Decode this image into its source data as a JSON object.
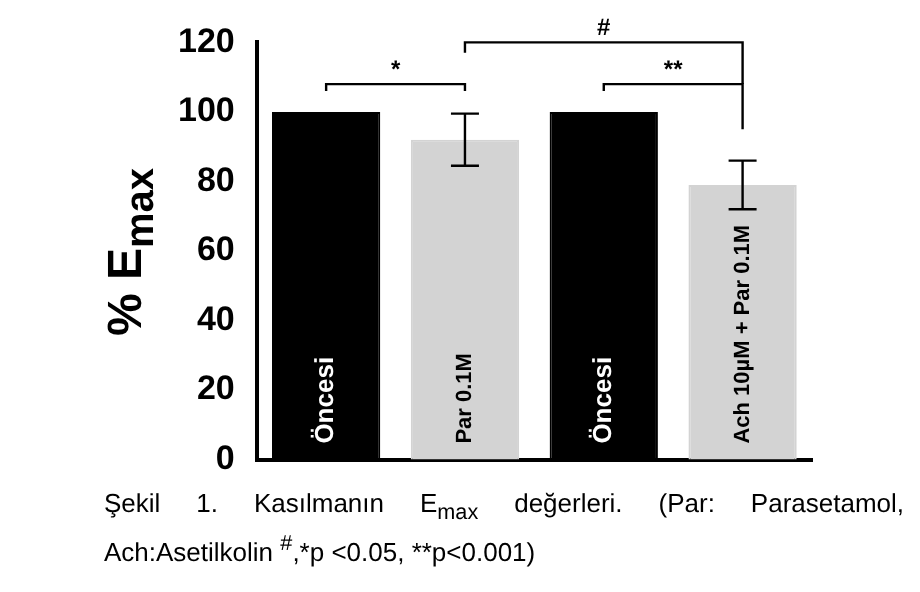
{
  "chart_data": {
    "type": "bar",
    "categories": [
      "Öncesi",
      "Par 0.1M",
      "Öncesi",
      "Ach 10µM + Par 0.1M"
    ],
    "values": [
      100,
      92,
      100,
      79
    ],
    "colors": [
      "#000000",
      "#d3d3d3",
      "#000000",
      "#d3d3d3"
    ],
    "errors": [
      null,
      7.5,
      null,
      7
    ],
    "ylabel": "% E$_{max}$",
    "ylim": [
      0,
      120
    ],
    "yticks": [
      0,
      20,
      40,
      60,
      80,
      100,
      120
    ],
    "grid": false,
    "legend": false,
    "annotations": [
      "*",
      "#",
      "**",
      "Şekil 1. Kasılmanın E$_{max}$ değerleri. (Par: Parasetamol, Ach:Asetilkolin $^{#}$,*p <0.05, **p<0.001)"
    ]
  }
}
